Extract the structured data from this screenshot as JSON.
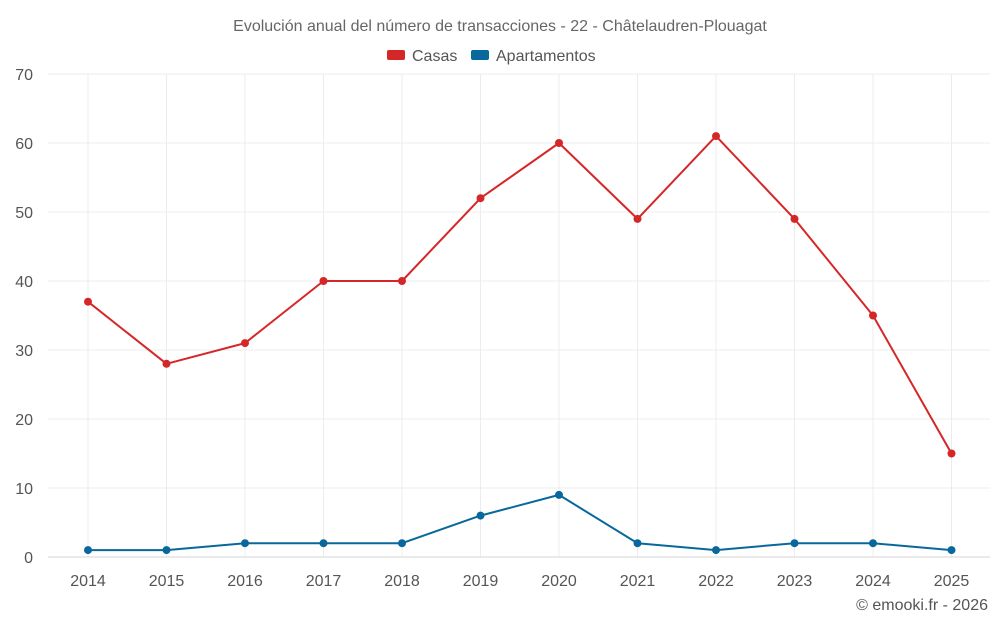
{
  "chart_data": {
    "type": "line",
    "title": "Evolución anual del número de transacciones - 22 - Châtelaudren-Plouagat",
    "categories": [
      "2014",
      "2015",
      "2016",
      "2017",
      "2018",
      "2019",
      "2020",
      "2021",
      "2022",
      "2023",
      "2024",
      "2025"
    ],
    "series": [
      {
        "name": "Casas",
        "color": "#d62728",
        "values": [
          37,
          28,
          31,
          40,
          40,
          52,
          60,
          49,
          61,
          49,
          35,
          15
        ]
      },
      {
        "name": "Apartamentos",
        "color": "#08689c",
        "values": [
          1,
          1,
          2,
          2,
          2,
          6,
          9,
          2,
          1,
          2,
          2,
          1
        ]
      }
    ],
    "ylim": [
      0,
      70
    ],
    "yticks": [
      0,
      10,
      20,
      30,
      40,
      50,
      60,
      70
    ],
    "grid": true,
    "legend": "top-center",
    "xlabel": "",
    "ylabel": ""
  },
  "credit": "© emooki.fr - 2026"
}
